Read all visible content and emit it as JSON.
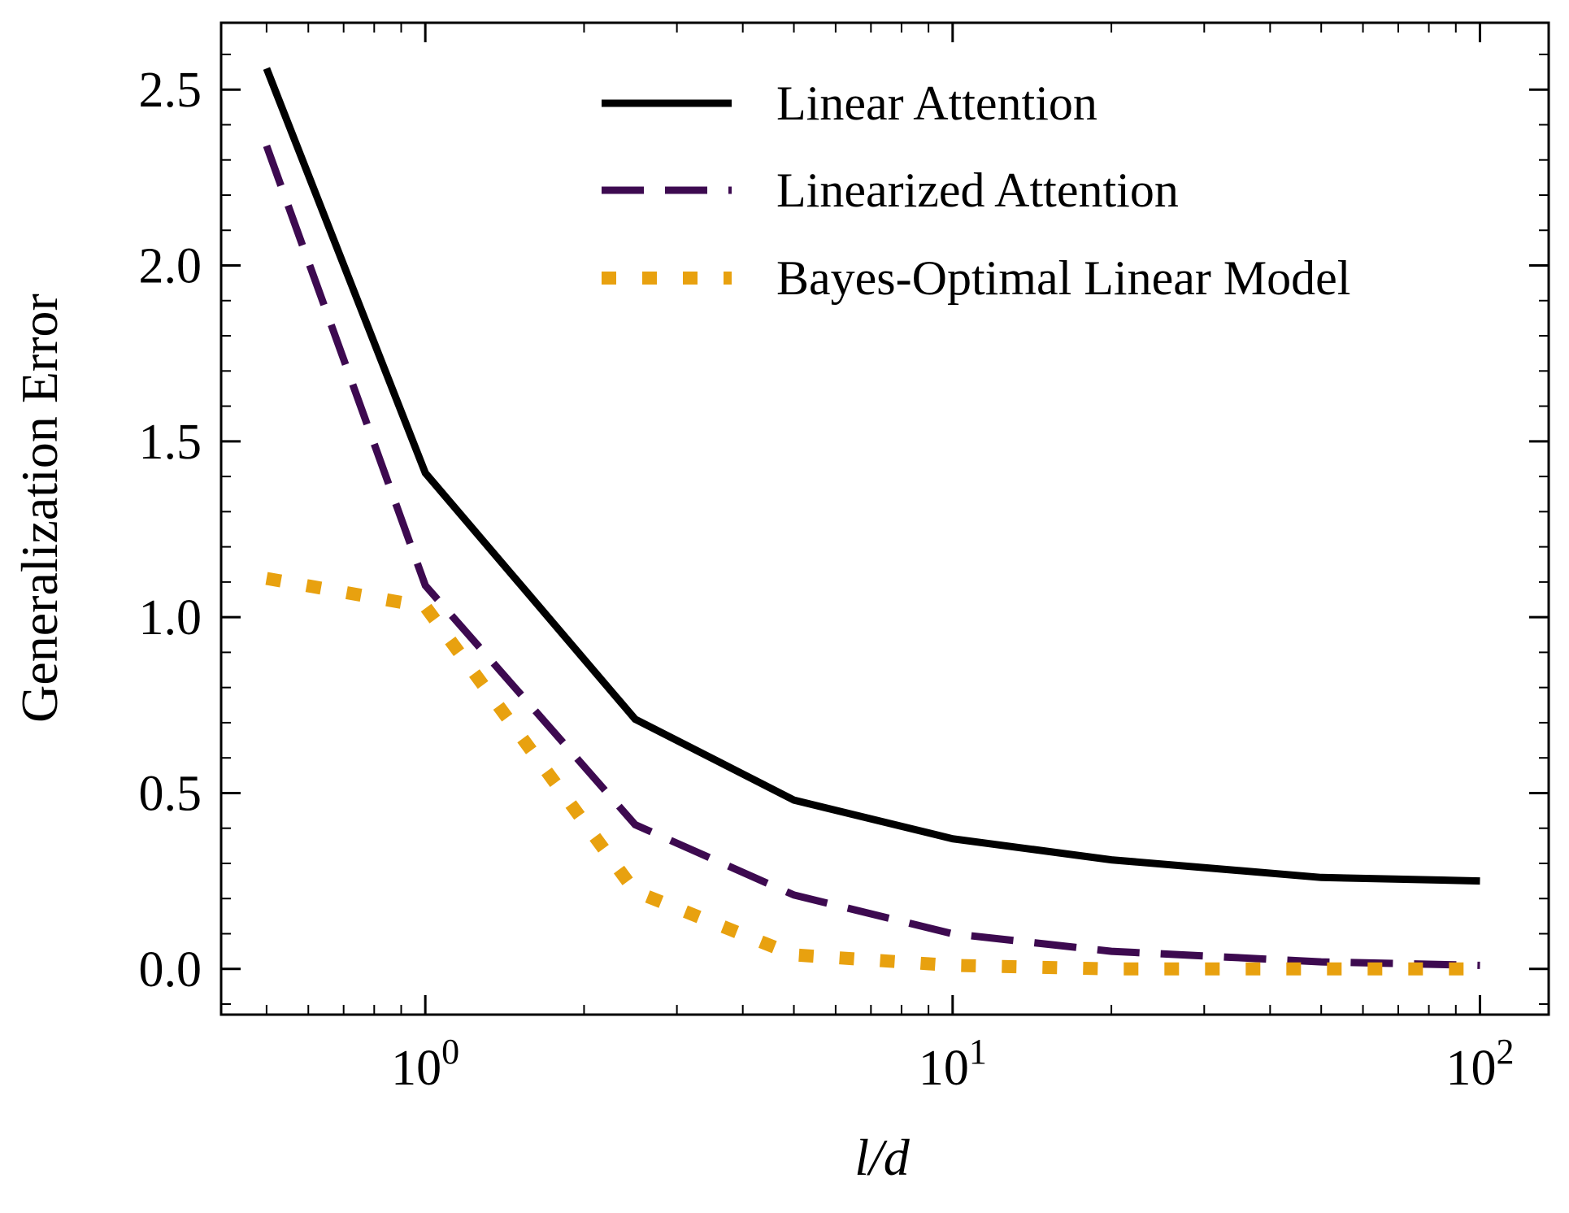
{
  "chart_data": {
    "type": "line",
    "title": "",
    "xlabel": "l/d",
    "ylabel": "Generalization Error",
    "xscale": "log",
    "xlim": [
      0.41,
      135
    ],
    "ylim": [
      -0.13,
      2.69
    ],
    "x": [
      0.5,
      1,
      2.5,
      5,
      10,
      20,
      50,
      100
    ],
    "x_ticks": [
      {
        "value": 1,
        "base": "10",
        "exp": "0"
      },
      {
        "value": 10,
        "base": "10",
        "exp": "1"
      },
      {
        "value": 100,
        "base": "10",
        "exp": "2"
      }
    ],
    "y_ticks": [
      {
        "value": 0.0,
        "label": "0.0"
      },
      {
        "value": 0.5,
        "label": "0.5"
      },
      {
        "value": 1.0,
        "label": "1.0"
      },
      {
        "value": 1.5,
        "label": "1.5"
      },
      {
        "value": 2.0,
        "label": "2.0"
      },
      {
        "value": 2.5,
        "label": "2.5"
      }
    ],
    "legend_position": "top-right",
    "series": [
      {
        "name": "Linear Attention",
        "color": "#000000",
        "style": "solid",
        "values": [
          2.56,
          1.41,
          0.71,
          0.48,
          0.37,
          0.31,
          0.26,
          0.25
        ]
      },
      {
        "name": "Linearized Attention",
        "color": "#3d0a50",
        "style": "dashed",
        "values": [
          2.34,
          1.09,
          0.41,
          0.21,
          0.1,
          0.05,
          0.02,
          0.01
        ]
      },
      {
        "name": "Bayes-Optimal Linear Model",
        "color": "#e8a10f",
        "style": "dotted",
        "values": [
          1.11,
          1.03,
          0.22,
          0.04,
          0.01,
          0.0,
          0.0,
          0.0
        ]
      }
    ]
  }
}
